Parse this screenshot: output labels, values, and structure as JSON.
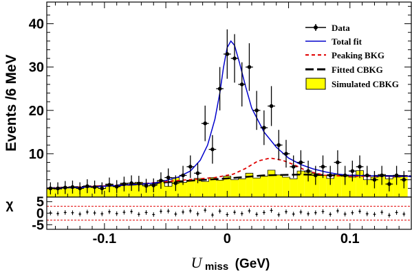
{
  "chart_data": {
    "type": "line",
    "xlabel_symbol": "U",
    "xlabel_subscript": "miss",
    "xlabel_unit": "(GeV)",
    "ylabel": "Events /6 MeV",
    "residual_ylabel": "χ",
    "xlim": [
      -0.147,
      0.15
    ],
    "ylim": [
      0,
      45
    ],
    "residual_ylim": [
      -7,
      7
    ],
    "x_ticks": [
      -0.1,
      0,
      0.1
    ],
    "x_tick_labels": [
      "-0.1",
      "0",
      "0.1"
    ],
    "y_ticks": [
      10,
      20,
      30,
      40
    ],
    "y_tick_labels": [
      "10",
      "20",
      "30",
      "40"
    ],
    "residual_ticks": [
      5,
      0,
      -5
    ],
    "residual_tick_labels": [
      "5",
      "0",
      "-5"
    ],
    "legend": [
      {
        "key": "data",
        "label": "Data"
      },
      {
        "key": "total",
        "label": "Total fit"
      },
      {
        "key": "peaking",
        "label": "Peaking BKG"
      },
      {
        "key": "cbkg",
        "label": "Fitted CBKG"
      },
      {
        "key": "sim",
        "label": "Simulated CBKG"
      }
    ],
    "colors": {
      "data": "#000000",
      "total": "#0000cc",
      "peaking": "#e00000",
      "cbkg": "#000000",
      "sim": "#ffff00"
    },
    "bin_width": 0.006,
    "data": [
      {
        "x": -0.144,
        "y": 2.0,
        "err": 1.4
      },
      {
        "x": -0.138,
        "y": 2.0,
        "err": 1.4
      },
      {
        "x": -0.132,
        "y": 2.2,
        "err": 1.5
      },
      {
        "x": -0.126,
        "y": 2.3,
        "err": 1.5
      },
      {
        "x": -0.12,
        "y": 2.0,
        "err": 1.4
      },
      {
        "x": -0.114,
        "y": 2.5,
        "err": 1.6
      },
      {
        "x": -0.108,
        "y": 2.3,
        "err": 1.5
      },
      {
        "x": -0.102,
        "y": 2.0,
        "err": 1.4
      },
      {
        "x": -0.096,
        "y": 2.8,
        "err": 1.7
      },
      {
        "x": -0.09,
        "y": 2.4,
        "err": 1.5
      },
      {
        "x": -0.084,
        "y": 3.0,
        "err": 1.7
      },
      {
        "x": -0.078,
        "y": 3.2,
        "err": 1.8
      },
      {
        "x": -0.072,
        "y": 3.1,
        "err": 1.8
      },
      {
        "x": -0.066,
        "y": 2.6,
        "err": 1.6
      },
      {
        "x": -0.06,
        "y": 2.7,
        "err": 1.6
      },
      {
        "x": -0.054,
        "y": 3.8,
        "err": 1.9
      },
      {
        "x": -0.048,
        "y": 4.5,
        "err": 2.1
      },
      {
        "x": -0.042,
        "y": 3.2,
        "err": 1.8
      },
      {
        "x": -0.036,
        "y": 5.0,
        "err": 2.2
      },
      {
        "x": -0.03,
        "y": 7.0,
        "err": 2.6
      },
      {
        "x": -0.024,
        "y": 5.5,
        "err": 2.3
      },
      {
        "x": -0.018,
        "y": 17.0,
        "err": 4.1
      },
      {
        "x": -0.012,
        "y": 11.0,
        "err": 3.3
      },
      {
        "x": -0.006,
        "y": 25.0,
        "err": 5.0
      },
      {
        "x": 0.0,
        "y": 33.0,
        "err": 5.7
      },
      {
        "x": 0.006,
        "y": 32.0,
        "err": 5.6
      },
      {
        "x": 0.012,
        "y": 26.0,
        "err": 5.1
      },
      {
        "x": 0.018,
        "y": 30.0,
        "err": 5.5
      },
      {
        "x": 0.024,
        "y": 20.0,
        "err": 4.5
      },
      {
        "x": 0.03,
        "y": 16.0,
        "err": 4.0
      },
      {
        "x": 0.036,
        "y": 21.0,
        "err": 4.6
      },
      {
        "x": 0.042,
        "y": 12.0,
        "err": 3.5
      },
      {
        "x": 0.048,
        "y": 10.0,
        "err": 3.2
      },
      {
        "x": 0.054,
        "y": 7.0,
        "err": 2.6
      },
      {
        "x": 0.06,
        "y": 8.0,
        "err": 2.8
      },
      {
        "x": 0.066,
        "y": 6.0,
        "err": 2.4
      },
      {
        "x": 0.072,
        "y": 5.0,
        "err": 2.2
      },
      {
        "x": 0.078,
        "y": 7.0,
        "err": 2.6
      },
      {
        "x": 0.084,
        "y": 5.0,
        "err": 2.2
      },
      {
        "x": 0.09,
        "y": 8.0,
        "err": 2.8
      },
      {
        "x": 0.096,
        "y": 5.0,
        "err": 2.2
      },
      {
        "x": 0.102,
        "y": 6.0,
        "err": 2.4
      },
      {
        "x": 0.108,
        "y": 7.0,
        "err": 2.6
      },
      {
        "x": 0.114,
        "y": 5.0,
        "err": 2.2
      },
      {
        "x": 0.12,
        "y": 4.0,
        "err": 2.0
      },
      {
        "x": 0.126,
        "y": 5.0,
        "err": 2.2
      },
      {
        "x": 0.132,
        "y": 3.0,
        "err": 1.7
      },
      {
        "x": 0.138,
        "y": 5.0,
        "err": 2.2
      },
      {
        "x": 0.144,
        "y": 4.0,
        "err": 2.0
      }
    ],
    "simulated_cbkg": [
      2.0,
      1.8,
      2.3,
      2.4,
      2.0,
      2.6,
      2.2,
      2.0,
      3.0,
      2.5,
      3.2,
      2.8,
      3.4,
      2.6,
      2.9,
      3.8,
      2.5,
      4.5,
      3.4,
      3.9,
      4.3,
      3.6,
      4.5,
      3.9,
      4.8,
      4.0,
      4.2,
      5.5,
      4.4,
      4.8,
      6.2,
      5.1,
      4.6,
      4.2,
      6.0,
      5.7,
      5.4,
      5.0,
      4.3,
      5.2,
      4.8,
      4.6,
      6.1,
      4.0,
      4.6,
      5.2,
      4.2,
      4.6,
      5.0
    ],
    "total_fit": [
      [
        -0.147,
        2.0
      ],
      [
        -0.12,
        2.2
      ],
      [
        -0.1,
        2.5
      ],
      [
        -0.08,
        2.8
      ],
      [
        -0.06,
        3.2
      ],
      [
        -0.05,
        3.8
      ],
      [
        -0.04,
        4.6
      ],
      [
        -0.03,
        6.0
      ],
      [
        -0.022,
        8.5
      ],
      [
        -0.016,
        12.0
      ],
      [
        -0.01,
        18.0
      ],
      [
        -0.006,
        24.0
      ],
      [
        -0.003,
        30.0
      ],
      [
        0.0,
        34.5
      ],
      [
        0.003,
        36.0
      ],
      [
        0.006,
        35.0
      ],
      [
        0.01,
        31.0
      ],
      [
        0.015,
        25.5
      ],
      [
        0.02,
        20.5
      ],
      [
        0.03,
        15.0
      ],
      [
        0.04,
        11.5
      ],
      [
        0.05,
        9.0
      ],
      [
        0.06,
        7.5
      ],
      [
        0.07,
        6.5
      ],
      [
        0.08,
        5.8
      ],
      [
        0.09,
        5.3
      ],
      [
        0.1,
        5.0
      ],
      [
        0.12,
        4.9
      ],
      [
        0.15,
        4.8
      ]
    ],
    "peaking_bkg": [
      [
        -0.147,
        2.0
      ],
      [
        -0.08,
        2.8
      ],
      [
        -0.04,
        3.8
      ],
      [
        -0.01,
        4.5
      ],
      [
        0.005,
        5.3
      ],
      [
        0.015,
        6.6
      ],
      [
        0.025,
        8.3
      ],
      [
        0.035,
        9.0
      ],
      [
        0.045,
        8.5
      ],
      [
        0.055,
        7.4
      ],
      [
        0.065,
        6.0
      ],
      [
        0.08,
        5.0
      ],
      [
        0.1,
        4.8
      ],
      [
        0.12,
        4.8
      ],
      [
        0.15,
        4.8
      ]
    ],
    "fitted_cbkg": [
      [
        -0.147,
        2.0
      ],
      [
        -0.08,
        2.8
      ],
      [
        -0.04,
        3.6
      ],
      [
        0.0,
        4.3
      ],
      [
        0.03,
        5.0
      ],
      [
        0.06,
        5.2
      ],
      [
        0.09,
        5.0
      ],
      [
        0.12,
        4.9
      ],
      [
        0.15,
        4.8
      ]
    ],
    "residuals": [
      0.1,
      -0.2,
      0.3,
      0.2,
      -0.4,
      0.5,
      0.1,
      -0.3,
      0.6,
      -0.2,
      0.4,
      0.7,
      -0.5,
      0.3,
      -0.6,
      0.8,
      0.9,
      -0.4,
      0.5,
      1.0,
      -0.3,
      1.3,
      -0.8,
      0.9,
      -0.6,
      0.4,
      -0.2,
      1.0,
      -0.5,
      0.3,
      1.2,
      -0.7,
      0.6,
      -0.4,
      0.5,
      -0.3,
      0.2,
      0.7,
      -0.5,
      1.0,
      -0.4,
      0.2,
      0.8,
      -0.3,
      -0.5,
      0.4,
      -0.9,
      0.3,
      -0.4
    ],
    "residual_reference_lines": [
      3,
      -3
    ]
  }
}
